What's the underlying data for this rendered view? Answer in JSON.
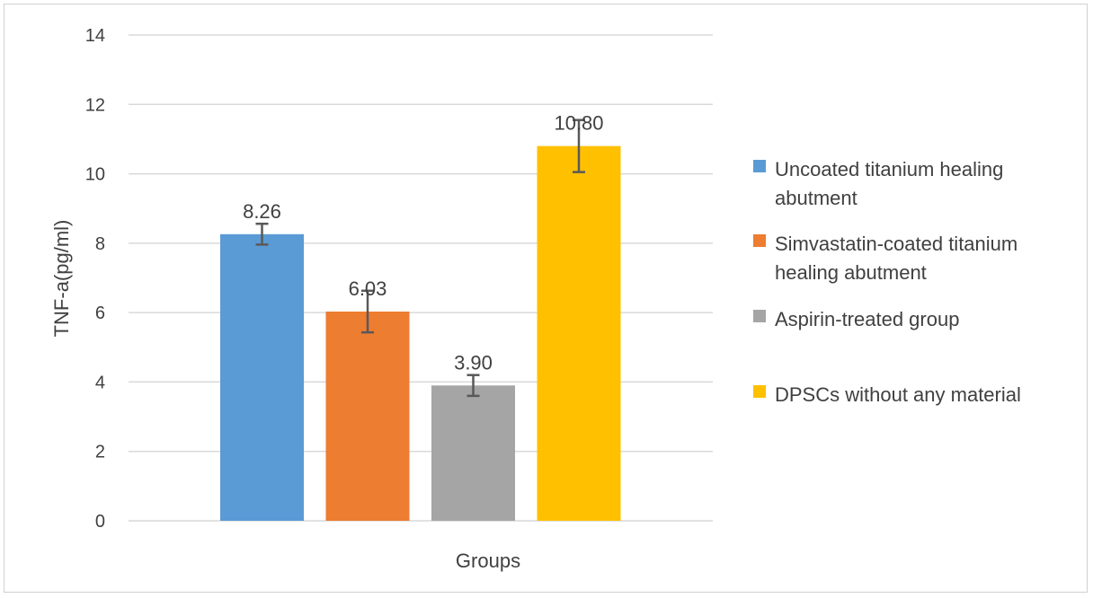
{
  "chart_data": {
    "type": "bar",
    "title": "",
    "xlabel": "Groups",
    "ylabel": "TNF-a(pg/ml)",
    "ylim": [
      0,
      14
    ],
    "yticks": [
      0,
      2,
      4,
      6,
      8,
      10,
      12,
      14
    ],
    "grid": true,
    "legend_position": "right",
    "series": [
      {
        "name": "Uncoated titanium healing abutment",
        "value": 8.26,
        "label": "8.26",
        "error": 0.3,
        "color": "#5B9BD5"
      },
      {
        "name": "Simvastatin-coated titanium healing abutment",
        "value": 6.03,
        "label": "6.03",
        "error": 0.6,
        "color": "#ED7D31"
      },
      {
        "name": "Aspirin-treated group",
        "value": 3.9,
        "label": "3.90",
        "error": 0.3,
        "color": "#A5A5A5"
      },
      {
        "name": "DPSCs without any material",
        "value": 10.8,
        "label": "10.80",
        "error": 0.75,
        "color": "#FFC000"
      }
    ],
    "legend": [
      {
        "lines": [
          "Uncoated titanium healing",
          "abutment"
        ]
      },
      {
        "lines": [
          "Simvastatin-coated titanium",
          "healing abutment"
        ]
      },
      {
        "lines": [
          "Aspirin-treated group"
        ]
      },
      {
        "lines": [
          "DPSCs without any material"
        ]
      }
    ]
  }
}
